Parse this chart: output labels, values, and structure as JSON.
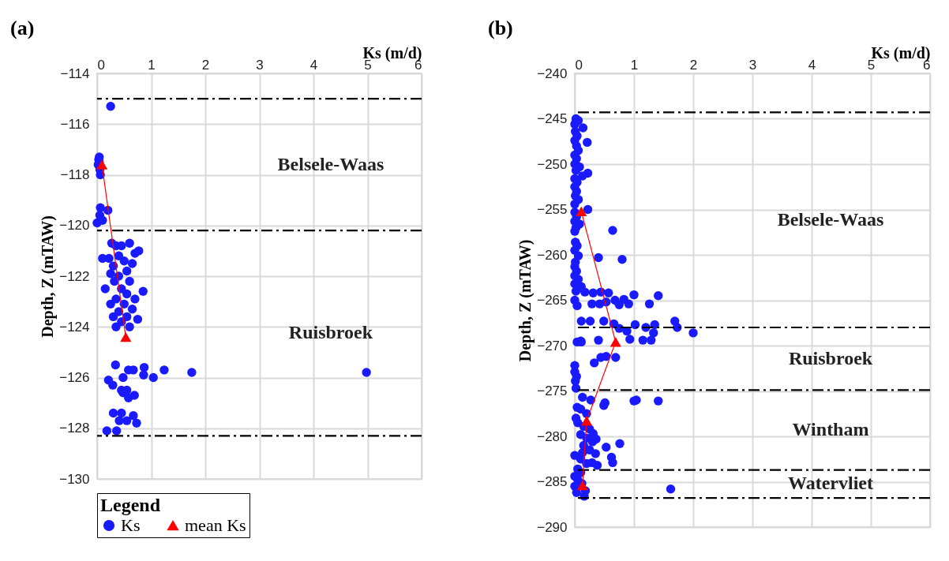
{
  "chart_data": [
    {
      "type": "scatter",
      "title": "(a)",
      "xlabel": "Ks (m/d)",
      "ylabel": "Depth, Z (mTAW)",
      "legend_title": "Legend",
      "legend": "bottom",
      "grid": true,
      "xlim": [
        0,
        6
      ],
      "xticks": [
        0,
        1,
        2,
        3,
        4,
        5,
        6
      ],
      "ylim": [
        -130,
        -114
      ],
      "yticks": [
        -130,
        -128,
        -126,
        -124,
        -122,
        -120,
        -118,
        -116,
        -114
      ],
      "series": [
        {
          "name": "Ks",
          "color": "#1a1aff",
          "marker": "circle",
          "x": [
            0.25,
            0.04,
            0.03,
            0.02,
            0.05,
            0.06,
            0.04,
            0.06,
            0.2,
            0.05,
            0.0,
            0.1,
            0.27,
            0.6,
            0.35,
            0.45,
            0.77,
            0.7,
            0.1,
            0.22,
            0.4,
            0.5,
            0.65,
            0.3,
            0.55,
            0.25,
            0.4,
            0.32,
            0.6,
            0.15,
            0.45,
            0.85,
            0.55,
            0.35,
            0.7,
            0.5,
            0.25,
            0.65,
            0.4,
            0.3,
            0.55,
            0.75,
            0.45,
            0.35,
            0.6,
            0.34,
            0.58,
            0.67,
            0.87,
            0.86,
            1.04,
            1.24,
            1.75,
            4.98,
            0.21,
            0.48,
            0.29,
            0.45,
            0.55,
            0.48,
            0.58,
            0.69,
            0.3,
            0.45,
            0.67,
            0.41,
            0.55,
            0.73,
            0.18,
            0.36
          ],
          "values": [
            -115.3,
            -117.3,
            -117.4,
            -117.6,
            -117.8,
            -118.0,
            -117.5,
            -119.3,
            -119.4,
            -119.6,
            -119.9,
            -119.8,
            -120.7,
            -120.7,
            -120.8,
            -120.8,
            -121.0,
            -121.1,
            -121.3,
            -121.3,
            -121.2,
            -121.4,
            -121.5,
            -121.6,
            -121.8,
            -121.9,
            -122.0,
            -122.2,
            -122.2,
            -122.5,
            -122.5,
            -122.6,
            -122.7,
            -122.9,
            -122.9,
            -123.1,
            -123.1,
            -123.3,
            -123.4,
            -123.6,
            -123.6,
            -123.7,
            -123.8,
            -124.0,
            -124.0,
            -125.5,
            -125.7,
            -125.7,
            -125.6,
            -125.9,
            -126.0,
            -125.7,
            -125.8,
            -125.8,
            -126.1,
            -126.0,
            -126.3,
            -126.5,
            -126.5,
            -126.6,
            -126.8,
            -126.7,
            -127.4,
            -127.4,
            -127.5,
            -127.7,
            -127.7,
            -127.8,
            -128.1,
            -128.1
          ]
        },
        {
          "name": "mean Ks",
          "type": "line",
          "color": "#ff0000",
          "marker": "triangle",
          "x": [
            0.09,
            0.53
          ],
          "values": [
            -117.6,
            -124.4
          ]
        }
      ],
      "ref_lines": [
        {
          "axis": "y",
          "value": -115,
          "line_style": "dashed"
        },
        {
          "axis": "y",
          "value": -120.2,
          "line_style": "dashed"
        },
        {
          "axis": "y",
          "value": -128.3,
          "line_style": "dashed"
        }
      ],
      "annotations": [
        "Belsele-Waas",
        "Ruisbroek"
      ]
    },
    {
      "type": "scatter",
      "title": "(b)",
      "xlabel": "Ks (m/d)",
      "ylabel": "Depth, Z (mTAW)",
      "grid": true,
      "xlim": [
        0,
        6
      ],
      "xticks": [
        0,
        1,
        2,
        3,
        4,
        5,
        6
      ],
      "ylim": [
        -290,
        -240
      ],
      "yticks": [
        -290,
        -285,
        -280,
        -275,
        -270,
        -265,
        -260,
        -255,
        -250,
        -245,
        -240
      ],
      "series": [
        {
          "color": "#1a1aff",
          "marker": "circle",
          "x": [
            0.02,
            0.06,
            0.0,
            0.14,
            0.01,
            0.04,
            0.0,
            0.21,
            0.03,
            0.06,
            0.0,
            0.03,
            0.0,
            0.08,
            0.02,
            0.22,
            0.13,
            0.0,
            0.04,
            0.0,
            0.03,
            0.01,
            0.06,
            0.0,
            0.22,
            0.0,
            0.03,
            0.0,
            0.08,
            0.02,
            0.64,
            0.0,
            0.01,
            0.04,
            0.0,
            0.4,
            0.8,
            0.06,
            0.01,
            0.0,
            0.03,
            0.0,
            0.06,
            0.0,
            0.11,
            0.02,
            0.17,
            0.31,
            0.44,
            0.57,
            1.0,
            1.41,
            0.29,
            0.42,
            0.53,
            0.75,
            0.91,
            1.26,
            0.0,
            0.04,
            0.83,
            0.68,
            0.11,
            0.26,
            0.49,
            0.66,
            0.75,
            0.88,
            1.02,
            1.2,
            1.35,
            1.33,
            1.69,
            1.73,
            2.0,
            1.29,
            1.15,
            0.93,
            0.11,
            0.4,
            0.04,
            0.1,
            0.33,
            0.44,
            0.53,
            0.69,
            0.0,
            0.0,
            0.01,
            0.02,
            0.03,
            0.13,
            0.27,
            0.51,
            1.04,
            1.0,
            1.41,
            0.04,
            0.49,
            0.02,
            0.31,
            0.36,
            0.53,
            0.76,
            0.62,
            0.64,
            0.0,
            0.13,
            0.38,
            0.29,
            0.0,
            0.0,
            0.18,
            0.16,
            1.62,
            0.1,
            0.2,
            0.05,
            0.15,
            0.25,
            0.1,
            0.2,
            0.3,
            0.15,
            0.25,
            0.35,
            0.1,
            0.2,
            0.05,
            0.1,
            0.05,
            0.12,
            0.03
          ],
          "values": [
            -245.0,
            -245.2,
            -245.6,
            -246.0,
            -246.4,
            -246.9,
            -247.4,
            -247.6,
            -248.0,
            -248.5,
            -249.0,
            -249.4,
            -250.0,
            -250.3,
            -250.7,
            -251.0,
            -251.3,
            -251.6,
            -252.0,
            -252.5,
            -253.0,
            -253.5,
            -253.9,
            -254.4,
            -255.0,
            -255.3,
            -255.8,
            -256.3,
            -256.6,
            -257.0,
            -257.3,
            -257.4,
            -258.6,
            -259.0,
            -259.5,
            -260.3,
            -260.5,
            -260.1,
            -260.8,
            -261.3,
            -261.8,
            -262.3,
            -262.7,
            -263.2,
            -263.5,
            -264.0,
            -264.1,
            -264.2,
            -264.1,
            -264.2,
            -264.4,
            -264.5,
            -265.4,
            -265.4,
            -265.2,
            -265.5,
            -265.4,
            -265.4,
            -265.0,
            -265.6,
            -264.9,
            -265.0,
            -267.3,
            -267.3,
            -267.3,
            -267.6,
            -268.1,
            -268.4,
            -267.7,
            -268.0,
            -267.7,
            -268.6,
            -267.3,
            -268.0,
            -268.6,
            -269.4,
            -269.4,
            -269.3,
            -269.6,
            -269.4,
            -269.6,
            -269.5,
            -271.9,
            -271.3,
            -271.2,
            -271.3,
            -272.2,
            -272.9,
            -273.9,
            -274.7,
            -273.4,
            -275.7,
            -276.0,
            -276.3,
            -276.0,
            -276.1,
            -276.1,
            -276.8,
            -276.6,
            -278.0,
            -279.7,
            -280.3,
            -281.2,
            -280.8,
            -282.3,
            -282.9,
            -282.1,
            -281.8,
            -283.2,
            -282.9,
            -284.4,
            -285.5,
            -286.0,
            -286.6,
            -285.8,
            -277.0,
            -277.5,
            -278.5,
            -278.9,
            -279.2,
            -279.8,
            -280.2,
            -280.6,
            -281.0,
            -281.5,
            -281.9,
            -282.5,
            -283.0,
            -283.6,
            -284.0,
            -284.8,
            -285.2,
            -286.2
          ]
        },
        {
          "type": "line",
          "color": "#ff0000",
          "marker": "triangle",
          "x": [
            0.11,
            0.69,
            0.2,
            0.13
          ],
          "values": [
            -255.2,
            -269.6,
            -278.3,
            -285.4
          ]
        }
      ],
      "ref_lines": [
        {
          "axis": "y",
          "value": -244.3,
          "line_style": "dashed"
        },
        {
          "axis": "y",
          "value": -268,
          "line_style": "dashed"
        },
        {
          "axis": "y",
          "value": -274.9,
          "line_style": "dashed"
        },
        {
          "axis": "y",
          "value": -283.7,
          "line_style": "dashed"
        },
        {
          "axis": "y",
          "value": -286.8,
          "line_style": "dashed"
        }
      ],
      "annotations": [
        "Belsele-Waas",
        "Ruisbroek",
        "Wintham",
        "Watervliet"
      ]
    }
  ]
}
